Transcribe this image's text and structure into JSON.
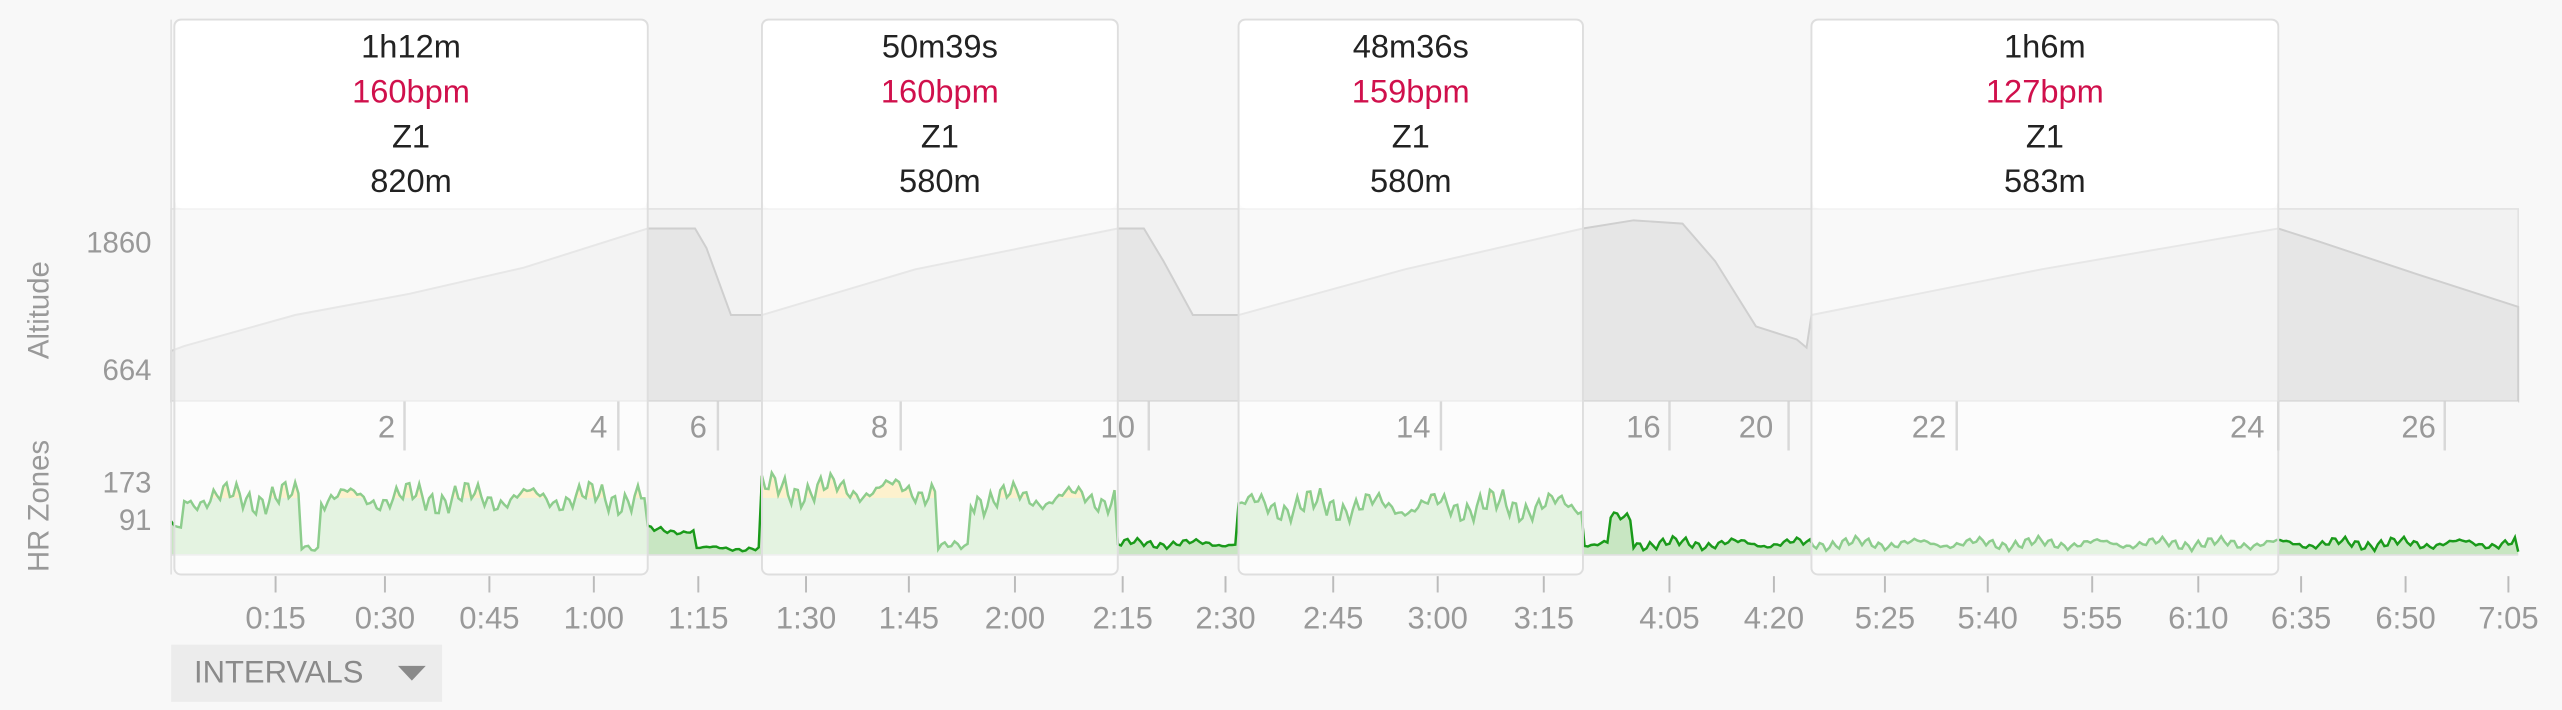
{
  "intervals": [
    {
      "duration": "1h12m",
      "heart_rate": "160bpm",
      "zone": "Z1",
      "distance": "820m"
    },
    {
      "duration": "50m39s",
      "heart_rate": "160bpm",
      "zone": "Z1",
      "distance": "580m"
    },
    {
      "duration": "48m36s",
      "heart_rate": "159bpm",
      "zone": "Z1",
      "distance": "580m"
    },
    {
      "duration": "1h6m",
      "heart_rate": "127bpm",
      "zone": "Z1",
      "distance": "583m"
    }
  ],
  "axes": {
    "altitude_label": "Altitude",
    "altitude_ticks": [
      "1860",
      "664"
    ],
    "hr_label": "HR Zones",
    "hr_ticks": [
      "173",
      "91"
    ]
  },
  "interval_numbers": [
    "2",
    "4",
    "6",
    "8",
    "10",
    "14",
    "16",
    "20",
    "22",
    "24",
    "26"
  ],
  "time_ticks": [
    "0:15",
    "0:30",
    "0:45",
    "1:00",
    "1:15",
    "1:30",
    "1:45",
    "2:00",
    "2:15",
    "2:30",
    "2:45",
    "3:00",
    "3:15",
    "4:05",
    "4:20",
    "5:25",
    "5:40",
    "5:55",
    "6:10",
    "6:35",
    "6:50",
    "7:05"
  ],
  "button": "INTERVALS"
}
